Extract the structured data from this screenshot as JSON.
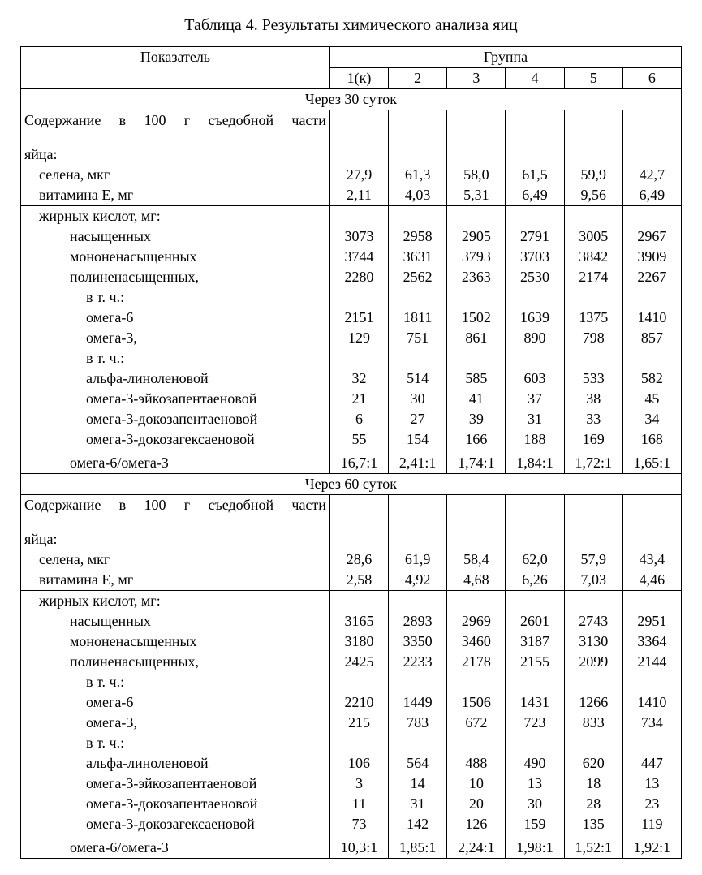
{
  "title": "Таблица 4. Результаты химического анализа яиц",
  "header": {
    "indicator": "Показатель",
    "group": "Группа",
    "cols": [
      "1(к)",
      "2",
      "3",
      "4",
      "5",
      "6"
    ]
  },
  "sections": [
    {
      "title": "Через 30 суток",
      "intro": "Содержание в 100 г съедобной части яйца:",
      "block1": [
        {
          "label": "селена, мкг",
          "pad": 1,
          "vals": [
            "27,9",
            "61,3",
            "58,0",
            "61,5",
            "59,9",
            "42,7"
          ]
        },
        {
          "label": "витамина Е, мг",
          "pad": 1,
          "vals": [
            "2,11",
            "4,03",
            "5,31",
            "6,49",
            "9,56",
            "6,49"
          ]
        }
      ],
      "block2_header": "жирных кислот, мг:",
      "block2": [
        {
          "label": "насыщенных",
          "pad": 2,
          "vals": [
            "3073",
            "2958",
            "2905",
            "2791",
            "3005",
            "2967"
          ]
        },
        {
          "label": "мононенасыщенных",
          "pad": 2,
          "vals": [
            "3744",
            "3631",
            "3793",
            "3703",
            "3842",
            "3909"
          ]
        },
        {
          "label": "полиненасыщенных,",
          "pad": 2,
          "vals": [
            "2280",
            "2562",
            "2363",
            "2530",
            "2174",
            "2267"
          ]
        },
        {
          "label": "в т. ч.:",
          "pad": 3,
          "vals": [
            "",
            "",
            "",
            "",
            "",
            ""
          ]
        },
        {
          "label": "омега-6",
          "pad": 3,
          "vals": [
            "2151",
            "1811",
            "1502",
            "1639",
            "1375",
            "1410"
          ]
        },
        {
          "label": "омега-3,",
          "pad": 3,
          "vals": [
            "129",
            "751",
            "861",
            "890",
            "798",
            "857"
          ]
        },
        {
          "label": "в т. ч.:",
          "pad": 3,
          "vals": [
            "",
            "",
            "",
            "",
            "",
            ""
          ]
        },
        {
          "label": "альфа-линоленовой",
          "pad": 3,
          "vals": [
            "32",
            "514",
            "585",
            "603",
            "533",
            "582"
          ]
        },
        {
          "label": "омега-3-эйкозапентаеновой",
          "pad": 3,
          "vals": [
            "21",
            "30",
            "41",
            "37",
            "38",
            "45"
          ]
        },
        {
          "label": "омега-3-докозапентаеновой",
          "pad": 3,
          "vals": [
            "6",
            "27",
            "39",
            "31",
            "33",
            "34"
          ]
        },
        {
          "label": "омега-3-докозагексаеновой",
          "pad": 3,
          "vals": [
            "55",
            "154",
            "166",
            "188",
            "169",
            "168"
          ]
        }
      ],
      "ratio": {
        "label": "омега-6/омега-3",
        "vals": [
          "16,7:1",
          "2,41:1",
          "1,74:1",
          "1,84:1",
          "1,72:1",
          "1,65:1"
        ]
      }
    },
    {
      "title": "Через 60 суток",
      "intro": "Содержание в 100 г съедобной части яйца:",
      "block1": [
        {
          "label": "селена, мкг",
          "pad": 1,
          "vals": [
            "28,6",
            "61,9",
            "58,4",
            "62,0",
            "57,9",
            "43,4"
          ]
        },
        {
          "label": "витамина Е, мг",
          "pad": 1,
          "vals": [
            "2,58",
            "4,92",
            "4,68",
            "6,26",
            "7,03",
            "4,46"
          ]
        }
      ],
      "block2_header": "жирных кислот, мг:",
      "block2": [
        {
          "label": "насыщенных",
          "pad": 2,
          "vals": [
            "3165",
            "2893",
            "2969",
            "2601",
            "2743",
            "2951"
          ]
        },
        {
          "label": "мононенасыщенных",
          "pad": 2,
          "vals": [
            "3180",
            "3350",
            "3460",
            "3187",
            "3130",
            "3364"
          ]
        },
        {
          "label": "полиненасыщенных,",
          "pad": 2,
          "vals": [
            "2425",
            "2233",
            "2178",
            "2155",
            "2099",
            "2144"
          ]
        },
        {
          "label": "в т. ч.:",
          "pad": 3,
          "vals": [
            "",
            "",
            "",
            "",
            "",
            ""
          ]
        },
        {
          "label": "омега-6",
          "pad": 3,
          "vals": [
            "2210",
            "1449",
            "1506",
            "1431",
            "1266",
            "1410"
          ]
        },
        {
          "label": "омега-3,",
          "pad": 3,
          "vals": [
            "215",
            "783",
            "672",
            "723",
            "833",
            "734"
          ]
        },
        {
          "label": "в т. ч.:",
          "pad": 3,
          "vals": [
            "",
            "",
            "",
            "",
            "",
            ""
          ]
        },
        {
          "label": "альфа-линоленовой",
          "pad": 3,
          "vals": [
            "106",
            "564",
            "488",
            "490",
            "620",
            "447"
          ]
        },
        {
          "label": "омега-3-эйкозапентаеновой",
          "pad": 3,
          "vals": [
            "3",
            "14",
            "10",
            "13",
            "18",
            "13"
          ]
        },
        {
          "label": "омега-3-докозапентаеновой",
          "pad": 3,
          "vals": [
            "11",
            "31",
            "20",
            "30",
            "28",
            "23"
          ]
        },
        {
          "label": "омега-3-докозагексаеновой",
          "pad": 3,
          "vals": [
            "73",
            "142",
            "126",
            "159",
            "135",
            "119"
          ]
        }
      ],
      "ratio": {
        "label": "омега-6/омега-3",
        "vals": [
          "10,3:1",
          "1,85:1",
          "2,24:1",
          "1,98:1",
          "1,52:1",
          "1,92:1"
        ]
      }
    }
  ]
}
